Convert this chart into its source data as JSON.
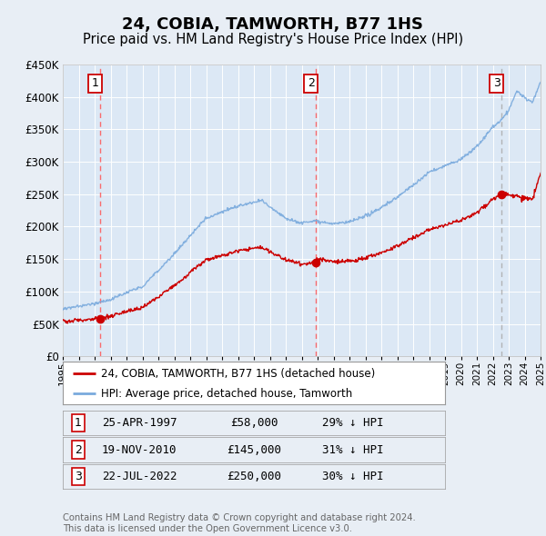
{
  "title": "24, COBIA, TAMWORTH, B77 1HS",
  "subtitle": "Price paid vs. HM Land Registry's House Price Index (HPI)",
  "x_start_year": 1995,
  "x_end_year": 2025,
  "y_min": 0,
  "y_max": 450000,
  "y_ticks": [
    0,
    50000,
    100000,
    150000,
    200000,
    250000,
    300000,
    350000,
    400000,
    450000
  ],
  "y_tick_labels": [
    "£0",
    "£50K",
    "£100K",
    "£150K",
    "£200K",
    "£250K",
    "£300K",
    "£350K",
    "£400K",
    "£450K"
  ],
  "background_color": "#e8eef5",
  "plot_bg_color": "#dce8f5",
  "grid_color": "#ffffff",
  "hpi_color": "#7aaadd",
  "price_color": "#cc0000",
  "sale1_vline_color": "#ff5555",
  "sale2_vline_color": "#ff5555",
  "sale3_vline_color": "#aaaaaa",
  "marker_color": "#cc0000",
  "sale_points": [
    {
      "date_num": 1997.32,
      "price": 58000,
      "label": "1",
      "date_str": "25-APR-1997",
      "price_str": "£58,000",
      "hpi_str": "29% ↓ HPI"
    },
    {
      "date_num": 2010.89,
      "price": 145000,
      "label": "2",
      "date_str": "19-NOV-2010",
      "price_str": "£145,000",
      "hpi_str": "31% ↓ HPI"
    },
    {
      "date_num": 2022.55,
      "price": 250000,
      "label": "3",
      "date_str": "22-JUL-2022",
      "price_str": "£250,000",
      "hpi_str": "30% ↓ HPI"
    }
  ],
  "legend_entries": [
    {
      "label": "24, COBIA, TAMWORTH, B77 1HS (detached house)",
      "color": "#cc0000",
      "lw": 2
    },
    {
      "label": "HPI: Average price, detached house, Tamworth",
      "color": "#7aaadd",
      "lw": 2
    }
  ],
  "footer": "Contains HM Land Registry data © Crown copyright and database right 2024.\nThis data is licensed under the Open Government Licence v3.0.",
  "title_fontsize": 13,
  "subtitle_fontsize": 10.5
}
